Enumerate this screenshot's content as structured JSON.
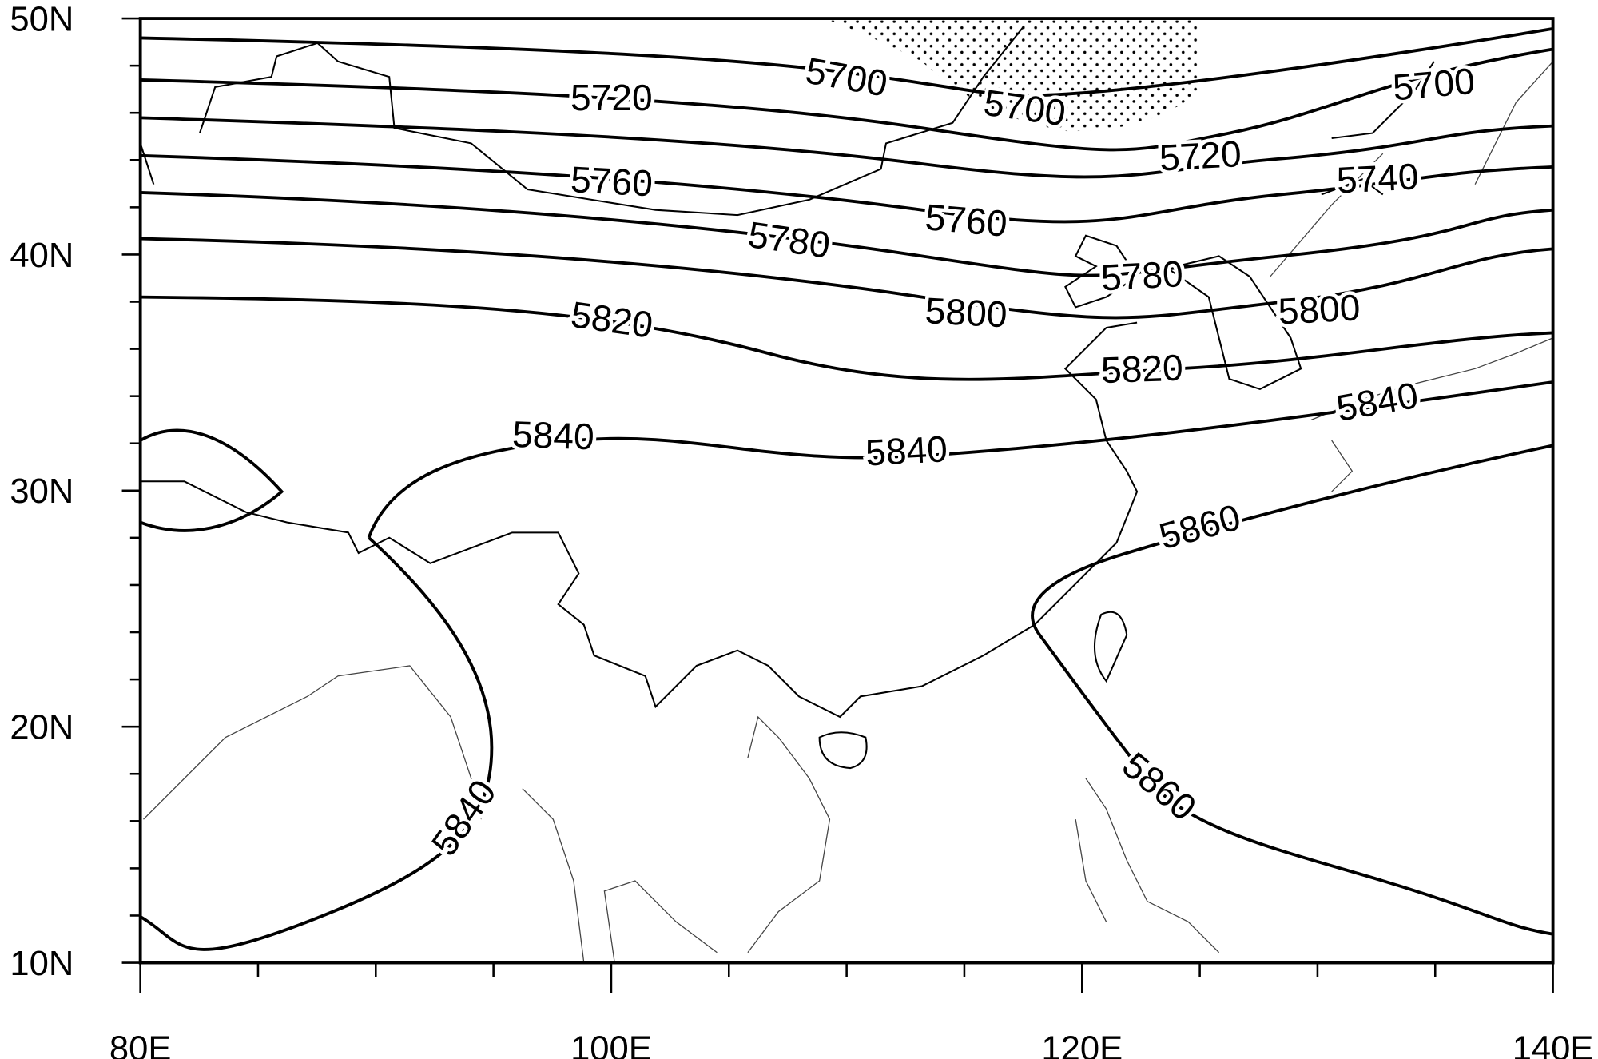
{
  "map": {
    "y_axis_labels": [
      "50N",
      "40N",
      "30N",
      "20N",
      "10N"
    ],
    "x_axis_labels": [
      "80E",
      "100E",
      "120E",
      "140E"
    ],
    "contour_labels": [
      "5720",
      "5700",
      "5700",
      "5700",
      "5760",
      "5720",
      "5740",
      "5780",
      "5760",
      "5780",
      "5820",
      "5800",
      "5800",
      "5820",
      "5840",
      "5840",
      "5840",
      "5860",
      "5840",
      "5860"
    ]
  }
}
